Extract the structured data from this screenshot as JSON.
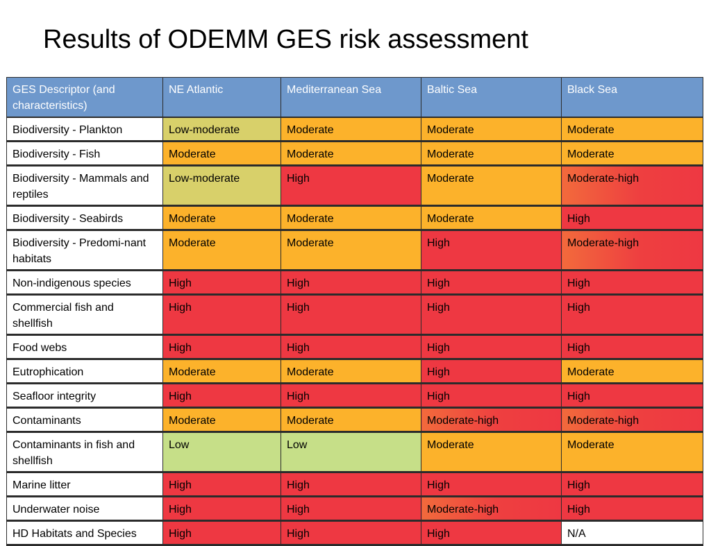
{
  "title": "Results of ODEMM GES risk assessment",
  "table": {
    "headers": [
      "GES Descriptor (and characteristics)",
      "NE Atlantic",
      "Mediterranean Sea",
      "Baltic Sea",
      "Black Sea"
    ],
    "rows": [
      [
        "Biodiversity  - Plankton",
        "Low-moderate",
        "Moderate",
        "Moderate",
        "Moderate"
      ],
      [
        "Biodiversity - Fish",
        "Moderate",
        "Moderate",
        "Moderate",
        "Moderate"
      ],
      [
        "Biodiversity - Mammals and reptiles",
        "Low-moderate",
        "High",
        "Moderate",
        "Moderate-high"
      ],
      [
        "Biodiversity - Seabirds",
        "Moderate",
        "Moderate",
        "Moderate",
        "High"
      ],
      [
        "Biodiversity - Predomi-nant habitats",
        "Moderate",
        "Moderate",
        "High",
        "Moderate-high"
      ],
      [
        "Non-indigenous species",
        "High",
        "High",
        "High",
        "High"
      ],
      [
        "Commercial fish and shellfish",
        "High",
        "High",
        "High",
        "High"
      ],
      [
        "Food webs",
        "High",
        "High",
        "High",
        "High"
      ],
      [
        "Eutrophication",
        "Moderate",
        "Moderate",
        "High",
        "Moderate"
      ],
      [
        "Seafloor integrity",
        "High",
        "High",
        "High",
        "High"
      ],
      [
        "Contaminants",
        "Moderate",
        "Moderate",
        "Moderate-high",
        "Moderate-high"
      ],
      [
        "Contaminants in fish and shellfish",
        "Low",
        "Low",
        "Moderate",
        "Moderate"
      ],
      [
        "Marine litter",
        "High",
        "High",
        "High",
        "High"
      ],
      [
        "Underwater noise",
        "High",
        "High",
        "Moderate-high",
        "High"
      ],
      [
        "HD Habitats and Species",
        "High",
        "High",
        "High",
        "N/A"
      ]
    ]
  },
  "colors": {
    "header": "#6e98cc",
    "High": "#ee3842",
    "Moderate": "#fcb22b",
    "Low": "#c6df88",
    "Low-moderate": "#d8d06a",
    "Moderate-high": "#f26a3c",
    "N/A": "#ffffff"
  }
}
